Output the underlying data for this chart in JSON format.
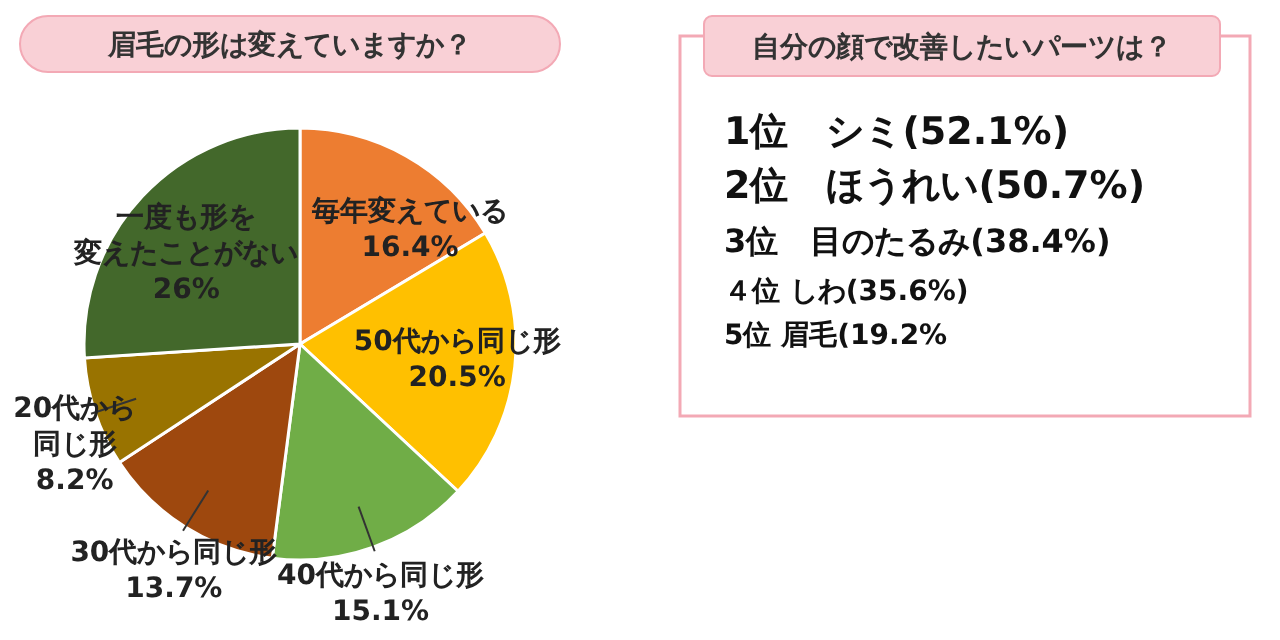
{
  "chart_data": [
    {
      "type": "pie",
      "title": "眉毛の形は変えていますか？",
      "categories": [
        "毎年変えている",
        "50代から同じ形",
        "40代から同じ形",
        "30代から同じ形",
        "20代から同じ形",
        "一度も形を変えたことがない"
      ],
      "values": [
        16.4,
        20.5,
        15.1,
        13.7,
        8.2,
        26
      ],
      "colors": [
        "#ed7d31",
        "#ffc000",
        "#70ad47",
        "#9e480e",
        "#997300",
        "#43682b"
      ],
      "value_labels": [
        "16.4%",
        "20.5%",
        "15.1%",
        "13.7%",
        "8.2%",
        "26%"
      ]
    },
    {
      "type": "other",
      "title": "自分の顔で改善したいパーツは？",
      "annotations": [
        "1位　シミ(52.1%)",
        "2位　ほうれい(50.7%)",
        "3位　目のたるみ(38.4%)",
        "４位 しわ(35.6%)",
        "5位  眉毛(19.2%"
      ]
    }
  ]
}
